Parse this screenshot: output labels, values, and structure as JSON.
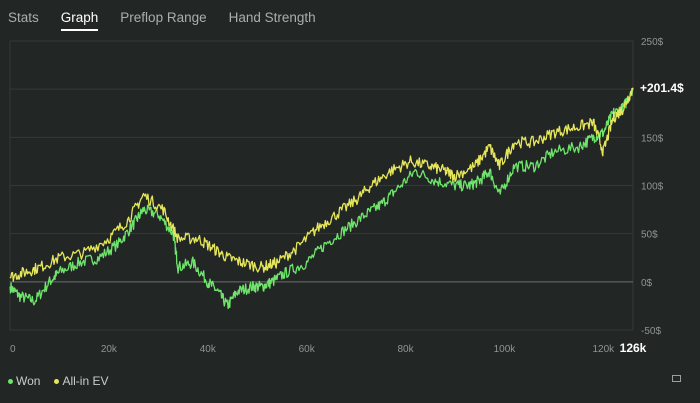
{
  "tabs": [
    {
      "label": "Stats",
      "active": false
    },
    {
      "label": "Graph",
      "active": true
    },
    {
      "label": "Preflop Range",
      "active": false
    },
    {
      "label": "Hand Strength",
      "active": false
    }
  ],
  "colors": {
    "background": "#222725",
    "grid": "#343a37",
    "zero_line": "#6a706c",
    "won": "#6ee56a",
    "allin_ev": "#e6e65a",
    "text": "#c9ceca"
  },
  "final_label": "+201.4$",
  "x_end_label": "126k",
  "legend": [
    {
      "label": "Won",
      "color": "#6ee56a"
    },
    {
      "label": "All-in EV",
      "color": "#e6e65a"
    }
  ],
  "chart_data": {
    "type": "line",
    "x_unit": "hands",
    "xlim": [
      0,
      126000
    ],
    "ylim": [
      -50,
      250
    ],
    "x_ticks": [
      {
        "value": 0,
        "label": "0"
      },
      {
        "value": 20000,
        "label": "20k"
      },
      {
        "value": 40000,
        "label": "40k"
      },
      {
        "value": 60000,
        "label": "60k"
      },
      {
        "value": 80000,
        "label": "80k"
      },
      {
        "value": 100000,
        "label": "100k"
      },
      {
        "value": 120000,
        "label": "120k"
      }
    ],
    "y_ticks": [
      {
        "value": 250,
        "label": "250$"
      },
      {
        "value": 150,
        "label": "150$"
      },
      {
        "value": 100,
        "label": "100$"
      },
      {
        "value": 50,
        "label": "50$"
      },
      {
        "value": 0,
        "label": "0$"
      },
      {
        "value": -50,
        "label": "-50$"
      }
    ],
    "grid_values": [
      -50,
      0,
      50,
      100,
      150,
      200,
      250
    ],
    "series": [
      {
        "name": "Won",
        "color": "#6ee56a",
        "points": [
          [
            0,
            -5
          ],
          [
            2000,
            -15
          ],
          [
            5000,
            -20
          ],
          [
            8000,
            0
          ],
          [
            10000,
            10
          ],
          [
            14000,
            20
          ],
          [
            18000,
            25
          ],
          [
            22000,
            40
          ],
          [
            25000,
            60
          ],
          [
            27000,
            75
          ],
          [
            30000,
            70
          ],
          [
            33000,
            50
          ],
          [
            34000,
            15
          ],
          [
            37000,
            20
          ],
          [
            40000,
            0
          ],
          [
            42000,
            -10
          ],
          [
            44000,
            -25
          ],
          [
            46000,
            -10
          ],
          [
            49000,
            -5
          ],
          [
            51000,
            -5
          ],
          [
            53000,
            0
          ],
          [
            56000,
            10
          ],
          [
            60000,
            20
          ],
          [
            64000,
            40
          ],
          [
            68000,
            55
          ],
          [
            72000,
            70
          ],
          [
            75000,
            80
          ],
          [
            78000,
            95
          ],
          [
            82000,
            115
          ],
          [
            86000,
            105
          ],
          [
            90000,
            100
          ],
          [
            93000,
            100
          ],
          [
            95000,
            105
          ],
          [
            97000,
            115
          ],
          [
            99000,
            90
          ],
          [
            102000,
            120
          ],
          [
            106000,
            120
          ],
          [
            110000,
            135
          ],
          [
            115000,
            140
          ],
          [
            118000,
            150
          ],
          [
            120000,
            155
          ],
          [
            122000,
            175
          ],
          [
            124000,
            180
          ],
          [
            126000,
            201.4
          ]
        ]
      },
      {
        "name": "All-in EV",
        "color": "#e6e65a",
        "points": [
          [
            0,
            5
          ],
          [
            3000,
            10
          ],
          [
            6000,
            15
          ],
          [
            10000,
            25
          ],
          [
            15000,
            30
          ],
          [
            20000,
            45
          ],
          [
            24000,
            65
          ],
          [
            27000,
            90
          ],
          [
            31000,
            75
          ],
          [
            34000,
            45
          ],
          [
            38000,
            45
          ],
          [
            41000,
            35
          ],
          [
            44000,
            25
          ],
          [
            47000,
            20
          ],
          [
            51000,
            15
          ],
          [
            54000,
            20
          ],
          [
            58000,
            35
          ],
          [
            62000,
            55
          ],
          [
            66000,
            70
          ],
          [
            70000,
            85
          ],
          [
            73000,
            100
          ],
          [
            77000,
            115
          ],
          [
            81000,
            125
          ],
          [
            85000,
            120
          ],
          [
            88000,
            115
          ],
          [
            90000,
            110
          ],
          [
            94000,
            120
          ],
          [
            97000,
            140
          ],
          [
            99000,
            120
          ],
          [
            102000,
            145
          ],
          [
            106000,
            145
          ],
          [
            110000,
            155
          ],
          [
            114000,
            160
          ],
          [
            118000,
            165
          ],
          [
            120000,
            135
          ],
          [
            122000,
            170
          ],
          [
            124000,
            180
          ],
          [
            126000,
            201.4
          ]
        ]
      }
    ]
  }
}
